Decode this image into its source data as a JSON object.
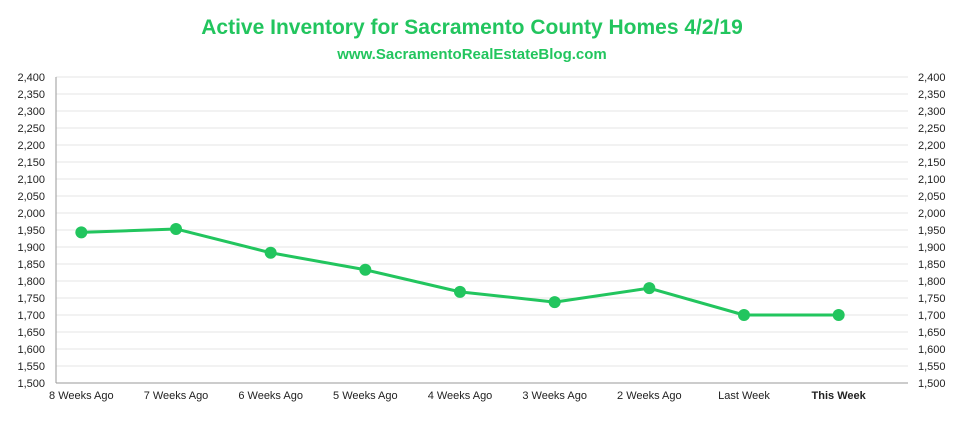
{
  "title": "Active Inventory for Sacramento County Homes 4/2/19",
  "subtitle": "www.SacramentoRealEstateBlog.com",
  "colors": {
    "accent": "#22c55e",
    "grid": "#e6e6e6",
    "axis": "#9a9a9a",
    "text": "#222222"
  },
  "chart_data": {
    "type": "line",
    "categories": [
      "8 Weeks Ago",
      "7 Weeks Ago",
      "6 Weeks Ago",
      "5 Weeks Ago",
      "4 Weeks Ago",
      "3 Weeks Ago",
      "2 Weeks Ago",
      "Last Week",
      "This Week"
    ],
    "highlight_category": "This Week",
    "series": [
      {
        "values": [
          1943,
          1953,
          1883,
          1833,
          1768,
          1738,
          1779,
          1700,
          1700
        ]
      }
    ],
    "ylim": [
      1500,
      2400
    ],
    "yticks": [
      1500,
      1550,
      1600,
      1650,
      1700,
      1750,
      1800,
      1850,
      1900,
      1950,
      2000,
      2050,
      2100,
      2150,
      2200,
      2250,
      2300,
      2350,
      2400
    ],
    "ytick_labels": [
      "1,500",
      "1,550",
      "1,600",
      "1,650",
      "1,700",
      "1,750",
      "1,800",
      "1,850",
      "1,900",
      "1,950",
      "2,000",
      "2,050",
      "2,100",
      "2,150",
      "2,200",
      "2,250",
      "2,300",
      "2,350",
      "2,400"
    ],
    "grid": true,
    "dual_y_axis": true
  }
}
